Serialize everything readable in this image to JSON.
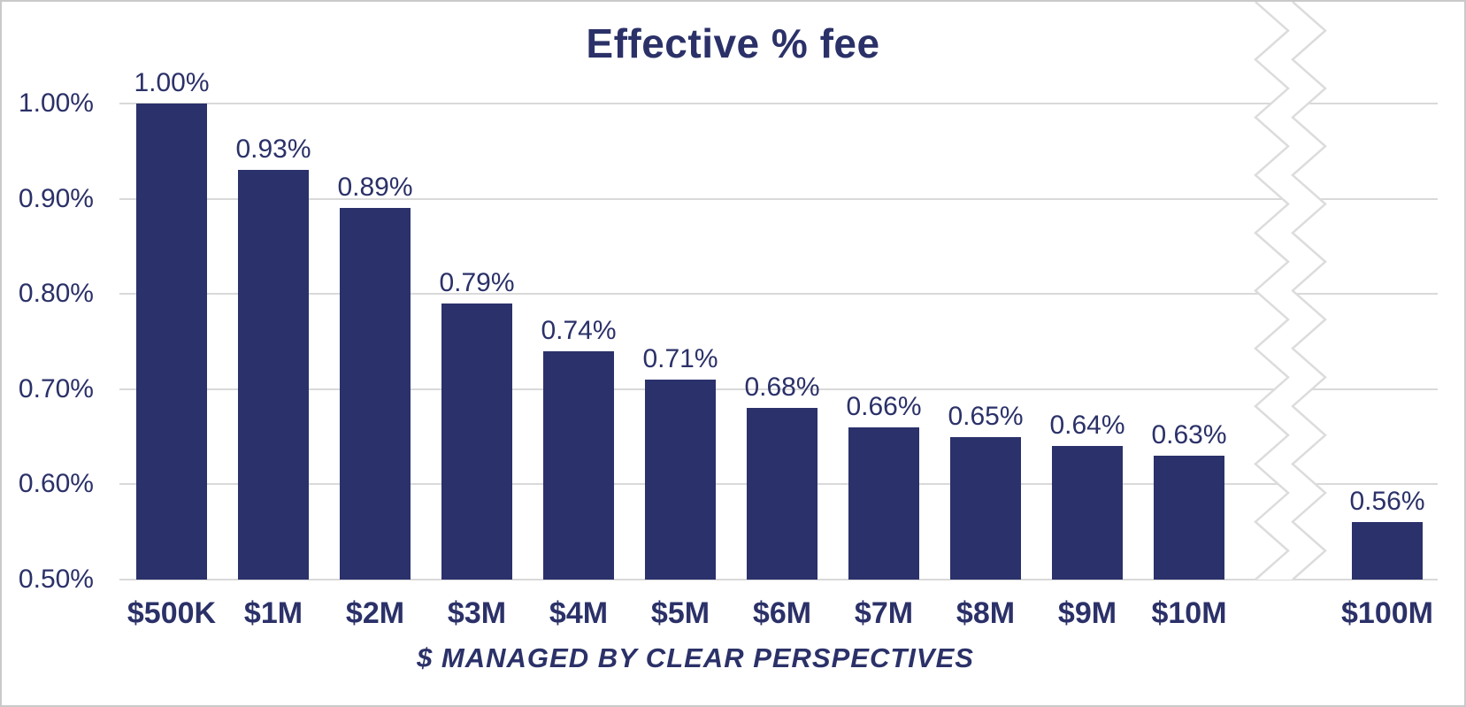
{
  "colors": {
    "bar": "#2A316B",
    "text": "#2B3168",
    "gridline": "#D9D9D9",
    "axis_break_line": "#DCDCDC",
    "frame": "#C9C9C9",
    "background": "#FFFFFF"
  },
  "chart_data": {
    "type": "bar",
    "title": "Effective % fee",
    "xlabel": "$ MANAGED BY CLEAR PERSPECTIVES",
    "ylabel": "",
    "categories": [
      "$500K",
      "$1M",
      "$2M",
      "$3M",
      "$4M",
      "$5M",
      "$6M",
      "$7M",
      "$8M",
      "$9M",
      "$10M",
      "$100M"
    ],
    "values": [
      1.0,
      0.93,
      0.89,
      0.79,
      0.74,
      0.71,
      0.68,
      0.66,
      0.65,
      0.64,
      0.63,
      0.56
    ],
    "bar_labels": [
      "1.00%",
      "0.93%",
      "0.89%",
      "0.79%",
      "0.74%",
      "0.71%",
      "0.68%",
      "0.66%",
      "0.65%",
      "0.64%",
      "0.63%",
      "0.56%"
    ],
    "yticks": [
      1.0,
      0.9,
      0.8,
      0.7,
      0.6,
      0.5
    ],
    "ytick_labels": [
      "1.00%",
      "0.90%",
      "0.80%",
      "0.70%",
      "0.60%",
      "0.50%"
    ],
    "ylim": [
      0.5,
      1.0
    ],
    "units": "percent",
    "grid": true,
    "legend": false,
    "axis_break": {
      "present": true,
      "between": [
        "$10M",
        "$100M"
      ]
    }
  }
}
